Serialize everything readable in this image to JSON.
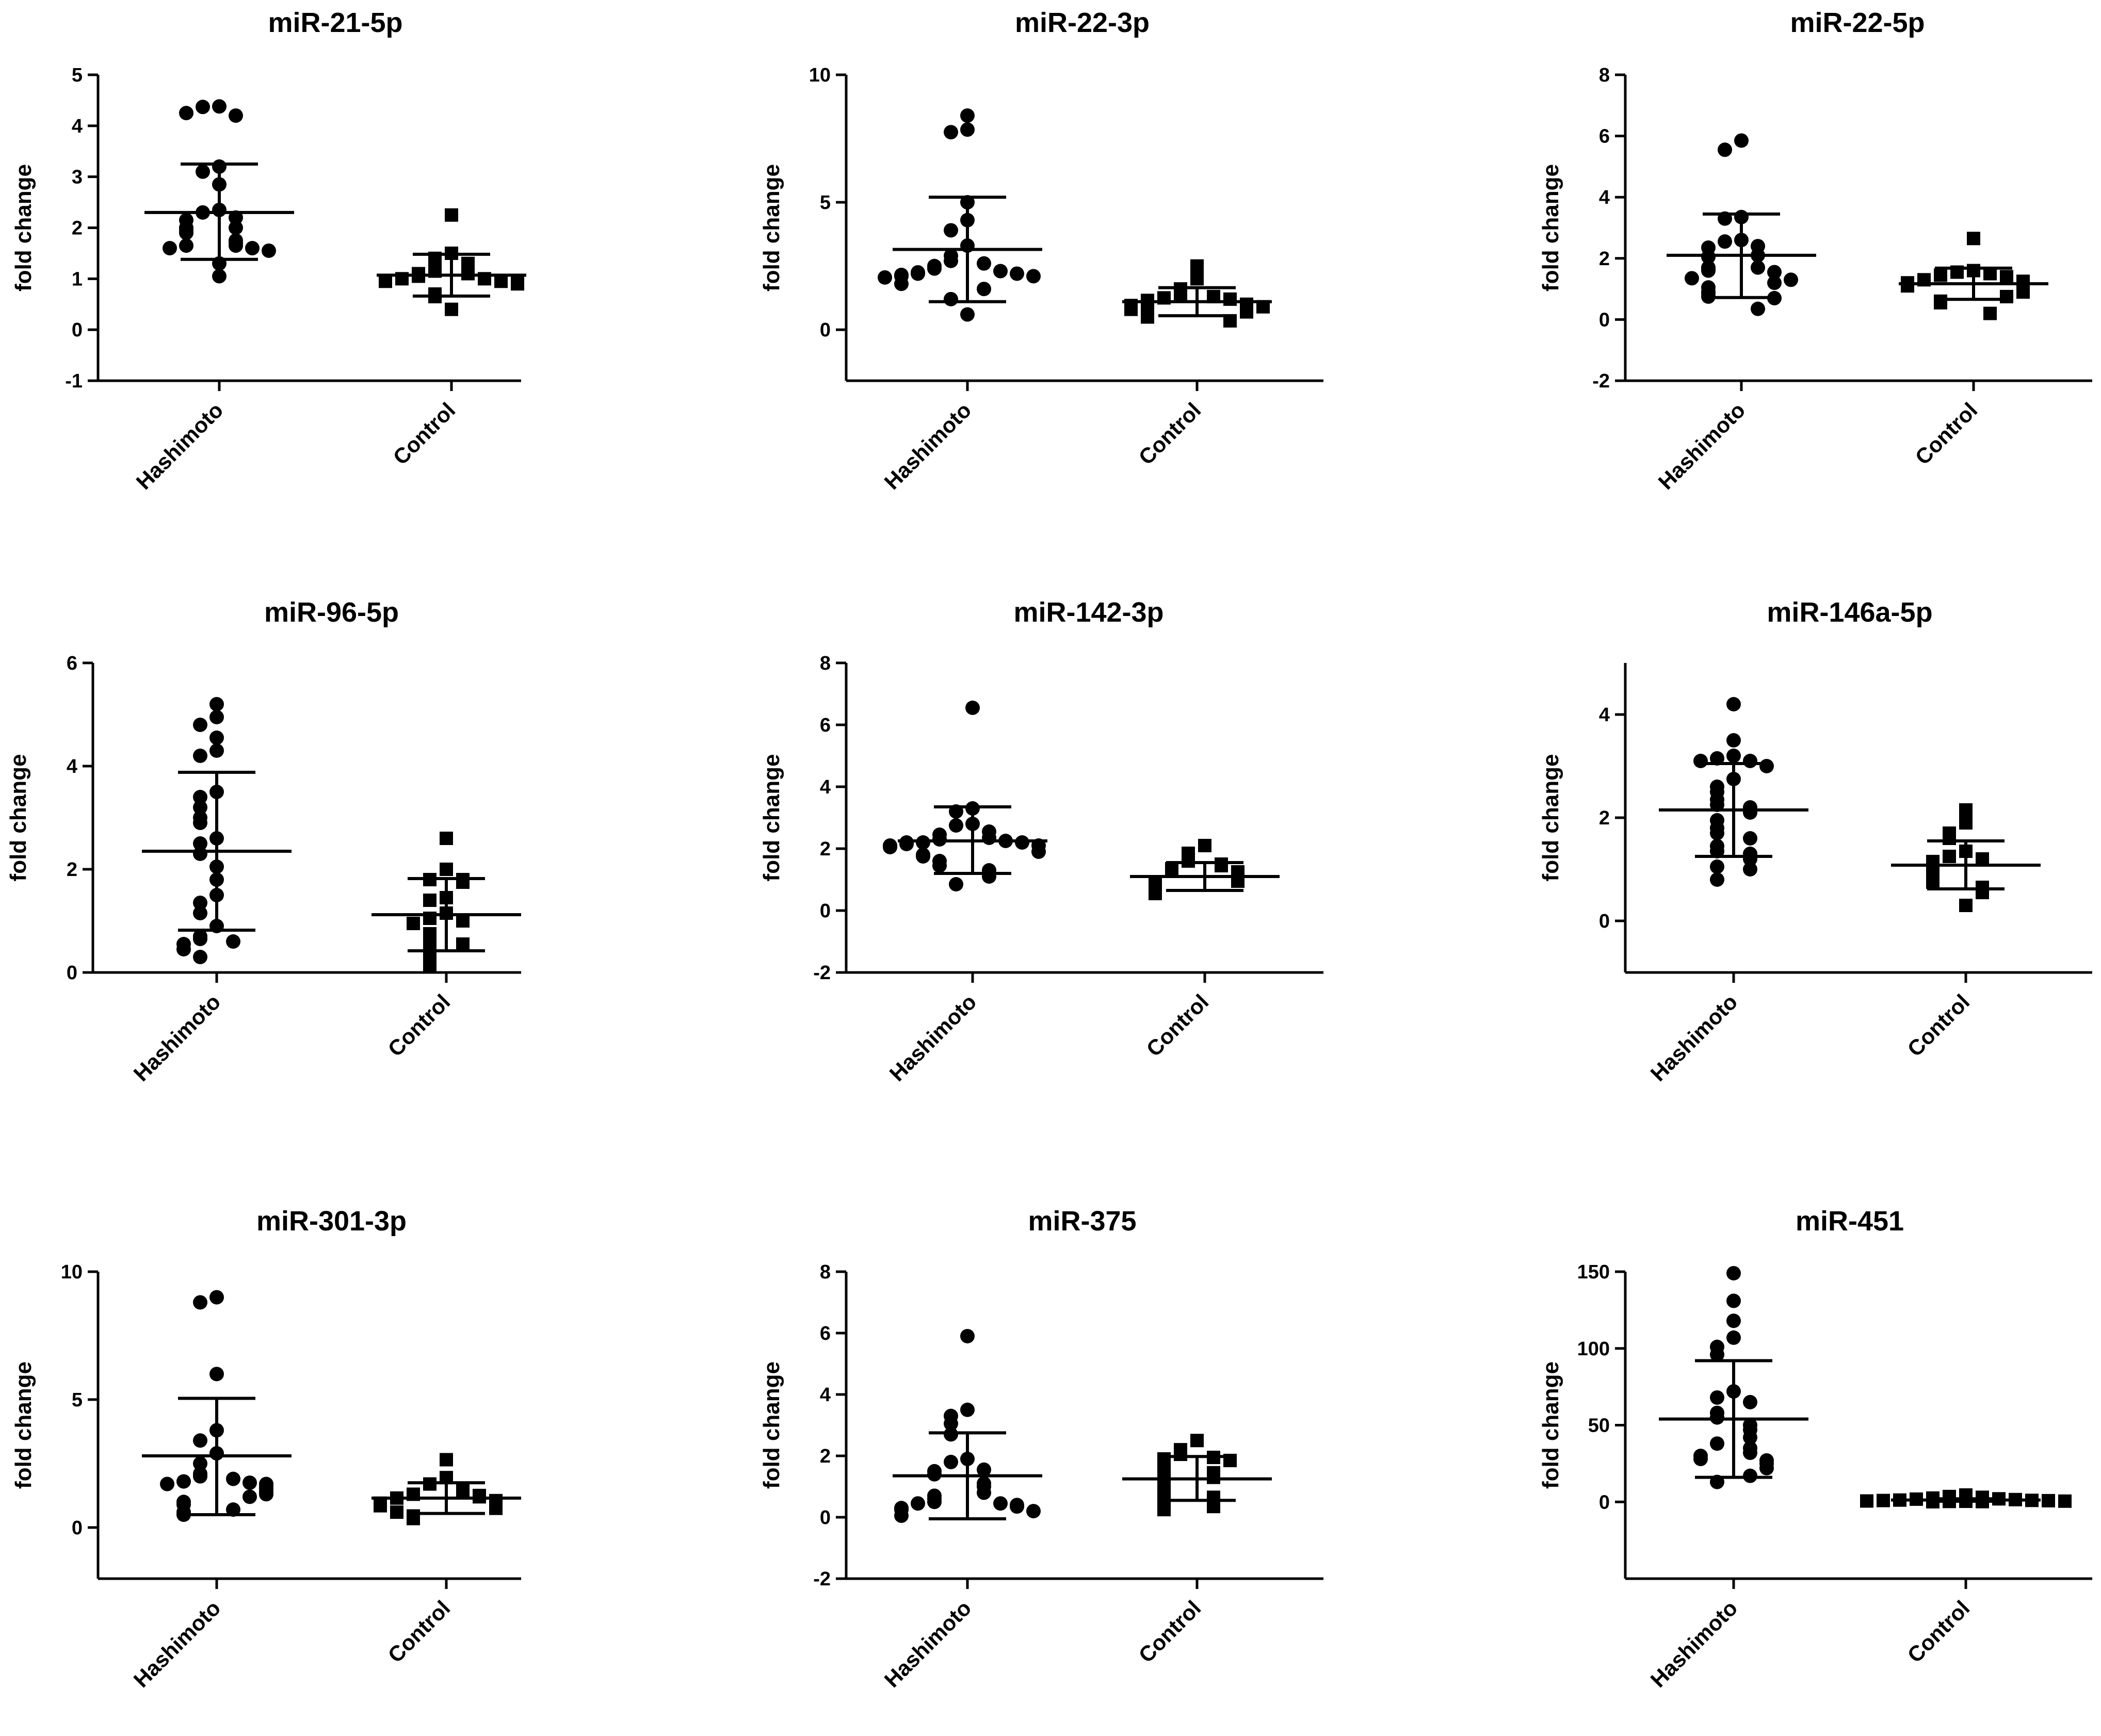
{
  "chart_data": [
    {
      "type": "scatter",
      "title": "miR-21-5p",
      "xlabel": "",
      "ylabel": "fold change",
      "categories": [
        "Hashimoto",
        "Control"
      ],
      "ylim": [
        -1,
        5
      ],
      "yticks": [
        "-1",
        "0",
        "1",
        "2",
        "3",
        "4",
        "5"
      ],
      "series": [
        {
          "name": "Hashimoto",
          "marker": "circle",
          "mean": 2.3,
          "sd_upper": 3.25,
          "sd_lower": 1.38,
          "values": [
            4.38,
            4.37,
            4.2,
            4.25,
            3.2,
            3.1,
            2.85,
            2.35,
            2.3,
            2.2,
            2.15,
            2.0,
            2.0,
            1.95,
            1.9,
            1.75,
            1.7,
            1.65,
            1.65,
            1.6,
            1.6,
            1.55,
            1.3,
            1.05
          ]
        },
        {
          "name": "Control",
          "marker": "square",
          "mean": 1.07,
          "sd_upper": 1.48,
          "sd_lower": 0.66,
          "values": [
            2.25,
            1.5,
            1.4,
            1.3,
            1.15,
            1.1,
            1.1,
            1.05,
            1.0,
            1.0,
            0.95,
            0.95,
            0.95,
            0.9,
            0.7,
            0.65,
            0.4
          ]
        }
      ]
    },
    {
      "type": "scatter",
      "title": "miR-22-3p",
      "xlabel": "",
      "ylabel": "fold change",
      "categories": [
        "Hashimoto",
        "Control"
      ],
      "ylim": [
        -2,
        10
      ],
      "yticks": [
        "0",
        "5",
        "10"
      ],
      "series": [
        {
          "name": "Hashimoto",
          "marker": "circle",
          "mean": 3.15,
          "sd_upper": 5.2,
          "sd_lower": 1.1,
          "values": [
            8.4,
            7.85,
            7.75,
            5.0,
            4.3,
            3.9,
            3.3,
            2.9,
            2.7,
            2.6,
            2.5,
            2.4,
            2.3,
            2.25,
            2.2,
            2.2,
            2.15,
            2.1,
            2.1,
            2.05,
            1.8,
            1.6,
            1.2,
            0.6
          ]
        },
        {
          "name": "Control",
          "marker": "square",
          "mean": 1.1,
          "sd_upper": 1.65,
          "sd_lower": 0.55,
          "values": [
            2.5,
            2.0,
            1.6,
            1.35,
            1.3,
            1.25,
            1.2,
            1.15,
            1.1,
            1.0,
            0.95,
            0.9,
            0.8,
            0.7,
            0.6,
            0.5,
            0.35
          ]
        }
      ]
    },
    {
      "type": "scatter",
      "title": "miR-22-5p",
      "xlabel": "",
      "ylabel": "fold change",
      "categories": [
        "Hashimoto",
        "Control"
      ],
      "ylim": [
        -2,
        8
      ],
      "yticks": [
        "-2",
        "0",
        "2",
        "4",
        "6",
        "8"
      ],
      "series": [
        {
          "name": "Hashimoto",
          "marker": "circle",
          "mean": 2.1,
          "sd_upper": 3.45,
          "sd_lower": 0.72,
          "values": [
            5.85,
            5.55,
            3.35,
            3.3,
            2.6,
            2.55,
            2.4,
            2.35,
            2.1,
            2.05,
            1.7,
            1.7,
            1.65,
            1.6,
            1.55,
            1.35,
            1.3,
            1.2,
            1.05,
            0.9,
            0.85,
            0.75,
            0.7,
            0.35
          ]
        },
        {
          "name": "Control",
          "marker": "square",
          "mean": 1.17,
          "sd_upper": 1.68,
          "sd_lower": 0.66,
          "values": [
            2.65,
            1.6,
            1.55,
            1.5,
            1.45,
            1.4,
            1.3,
            1.25,
            1.2,
            1.15,
            1.1,
            1.0,
            0.9,
            0.75,
            0.6,
            0.55,
            0.2
          ]
        }
      ]
    },
    {
      "type": "scatter",
      "title": "miR-96-5p",
      "xlabel": "",
      "ylabel": "fold change",
      "categories": [
        "Hashimoto",
        "Control"
      ],
      "ylim": [
        0,
        6
      ],
      "yticks": [
        "0",
        "2",
        "4",
        "6"
      ],
      "series": [
        {
          "name": "Hashimoto",
          "marker": "circle",
          "mean": 2.35,
          "sd_upper": 3.88,
          "sd_lower": 0.82,
          "values": [
            5.2,
            4.95,
            4.8,
            4.55,
            4.3,
            4.2,
            3.5,
            3.4,
            3.2,
            3.0,
            2.9,
            2.6,
            2.5,
            2.3,
            2.05,
            1.8,
            1.5,
            1.35,
            1.15,
            0.9,
            0.7,
            0.65,
            0.6,
            0.55,
            0.45,
            0.3
          ]
        },
        {
          "name": "Control",
          "marker": "square",
          "mean": 1.12,
          "sd_upper": 1.82,
          "sd_lower": 0.42,
          "values": [
            2.6,
            2.0,
            1.8,
            1.8,
            1.75,
            1.45,
            1.4,
            1.15,
            1.05,
            1.0,
            0.95,
            0.75,
            0.7,
            0.55,
            0.45,
            0.3,
            0.15
          ]
        }
      ]
    },
    {
      "type": "scatter",
      "title": "miR-142-3p",
      "xlabel": "",
      "ylabel": "fold change",
      "categories": [
        "Hashimoto",
        "Control"
      ],
      "ylim": [
        -2,
        8
      ],
      "yticks": [
        "-2",
        "0",
        "2",
        "4",
        "6",
        "8"
      ],
      "series": [
        {
          "name": "Hashimoto",
          "marker": "circle",
          "mean": 2.25,
          "sd_upper": 3.35,
          "sd_lower": 1.2,
          "values": [
            6.55,
            3.3,
            3.2,
            2.8,
            2.75,
            2.55,
            2.45,
            2.35,
            2.3,
            2.25,
            2.2,
            2.2,
            2.2,
            2.15,
            2.1,
            2.1,
            2.05,
            1.9,
            1.8,
            1.75,
            1.6,
            1.45,
            1.3,
            1.1,
            0.85
          ]
        },
        {
          "name": "Control",
          "marker": "square",
          "mean": 1.1,
          "sd_upper": 1.55,
          "sd_lower": 0.65,
          "values": [
            2.1,
            1.85,
            1.6,
            1.5,
            1.45,
            1.35,
            1.25,
            1.15,
            1.1,
            1.0,
            0.95,
            0.9,
            0.85,
            0.75,
            0.65,
            0.6,
            0.55
          ]
        }
      ]
    },
    {
      "type": "scatter",
      "title": "miR-146a-5p",
      "xlabel": "",
      "ylabel": "fold change",
      "categories": [
        "Hashimoto",
        "Control"
      ],
      "ylim": [
        -1,
        5
      ],
      "yticks": [
        "0",
        "2",
        "4"
      ],
      "series": [
        {
          "name": "Hashimoto",
          "marker": "circle",
          "mean": 2.15,
          "sd_upper": 3.05,
          "sd_lower": 1.25,
          "values": [
            4.2,
            3.5,
            3.2,
            3.15,
            3.1,
            3.1,
            3.0,
            2.75,
            2.6,
            2.5,
            2.35,
            2.25,
            2.2,
            2.1,
            1.95,
            1.8,
            1.7,
            1.6,
            1.45,
            1.35,
            1.3,
            1.2,
            1.05,
            1.0,
            0.8
          ]
        },
        {
          "name": "Control",
          "marker": "square",
          "mean": 1.08,
          "sd_upper": 1.55,
          "sd_lower": 0.62,
          "values": [
            2.15,
            1.9,
            1.7,
            1.6,
            1.35,
            1.25,
            1.2,
            1.15,
            1.1,
            1.0,
            0.95,
            0.9,
            0.85,
            0.75,
            0.65,
            0.55,
            0.3
          ]
        }
      ]
    },
    {
      "type": "scatter",
      "title": "miR-301-3p",
      "xlabel": "",
      "ylabel": "fold change",
      "categories": [
        "Hashimoto",
        "Control"
      ],
      "ylim": [
        -2,
        10
      ],
      "yticks": [
        "0",
        "5",
        "10"
      ],
      "series": [
        {
          "name": "Hashimoto",
          "marker": "circle",
          "mean": 2.8,
          "sd_upper": 5.05,
          "sd_lower": 0.5,
          "values": [
            9.0,
            8.8,
            6.0,
            3.8,
            3.4,
            2.9,
            2.5,
            2.1,
            2.0,
            1.9,
            1.8,
            1.75,
            1.7,
            1.7,
            1.6,
            1.5,
            1.4,
            1.3,
            1.2,
            1.0,
            0.9,
            0.7,
            0.6,
            0.5
          ]
        },
        {
          "name": "Control",
          "marker": "square",
          "mean": 1.15,
          "sd_upper": 1.75,
          "sd_lower": 0.55,
          "values": [
            2.65,
            1.95,
            1.7,
            1.5,
            1.4,
            1.3,
            1.25,
            1.2,
            1.15,
            1.05,
            1.0,
            0.95,
            0.85,
            0.75,
            0.6,
            0.45,
            0.35
          ]
        }
      ]
    },
    {
      "type": "scatter",
      "title": "miR-375",
      "xlabel": "",
      "ylabel": "fold change",
      "categories": [
        "Hashimoto",
        "Control"
      ],
      "ylim": [
        -2,
        8
      ],
      "yticks": [
        "-2",
        "0",
        "2",
        "4",
        "6",
        "8"
      ],
      "series": [
        {
          "name": "Hashimoto",
          "marker": "circle",
          "mean": 1.35,
          "sd_upper": 2.75,
          "sd_lower": -0.05,
          "values": [
            5.9,
            3.5,
            3.3,
            3.05,
            2.7,
            1.9,
            1.8,
            1.55,
            1.5,
            1.4,
            1.1,
            1.0,
            0.8,
            0.7,
            0.6,
            0.5,
            0.45,
            0.45,
            0.4,
            0.35,
            0.3,
            0.25,
            0.2,
            0.05
          ]
        },
        {
          "name": "Control",
          "marker": "square",
          "mean": 1.25,
          "sd_upper": 1.98,
          "sd_lower": 0.55,
          "values": [
            2.5,
            2.2,
            2.05,
            1.95,
            1.9,
            1.85,
            1.6,
            1.45,
            1.3,
            1.2,
            1.1,
            0.9,
            0.8,
            0.65,
            0.55,
            0.35,
            0.25
          ]
        }
      ]
    },
    {
      "type": "scatter",
      "title": "miR-451",
      "xlabel": "",
      "ylabel": "fold change",
      "categories": [
        "Hashimoto",
        "Control"
      ],
      "ylim": [
        -50,
        150
      ],
      "yticks": [
        "0",
        "50",
        "100",
        "150"
      ],
      "series": [
        {
          "name": "Hashimoto",
          "marker": "circle",
          "mean": 54,
          "sd_upper": 92,
          "sd_lower": 16,
          "values": [
            149,
            131,
            118,
            107,
            101,
            96,
            72,
            68,
            65,
            58,
            55,
            50,
            47,
            42,
            38,
            35,
            32,
            30,
            28,
            27,
            25,
            22,
            17,
            13
          ]
        },
        {
          "name": "Control",
          "marker": "square",
          "mean": 1.2,
          "sd_upper": 2.0,
          "sd_lower": 0.4,
          "values": [
            4.5,
            3.5,
            3.0,
            2.5,
            2.0,
            1.8,
            1.5,
            1.2,
            1.0,
            0.9,
            0.8,
            0.6,
            0.5,
            0.4,
            0.3,
            0.2,
            0.1
          ]
        }
      ]
    }
  ]
}
